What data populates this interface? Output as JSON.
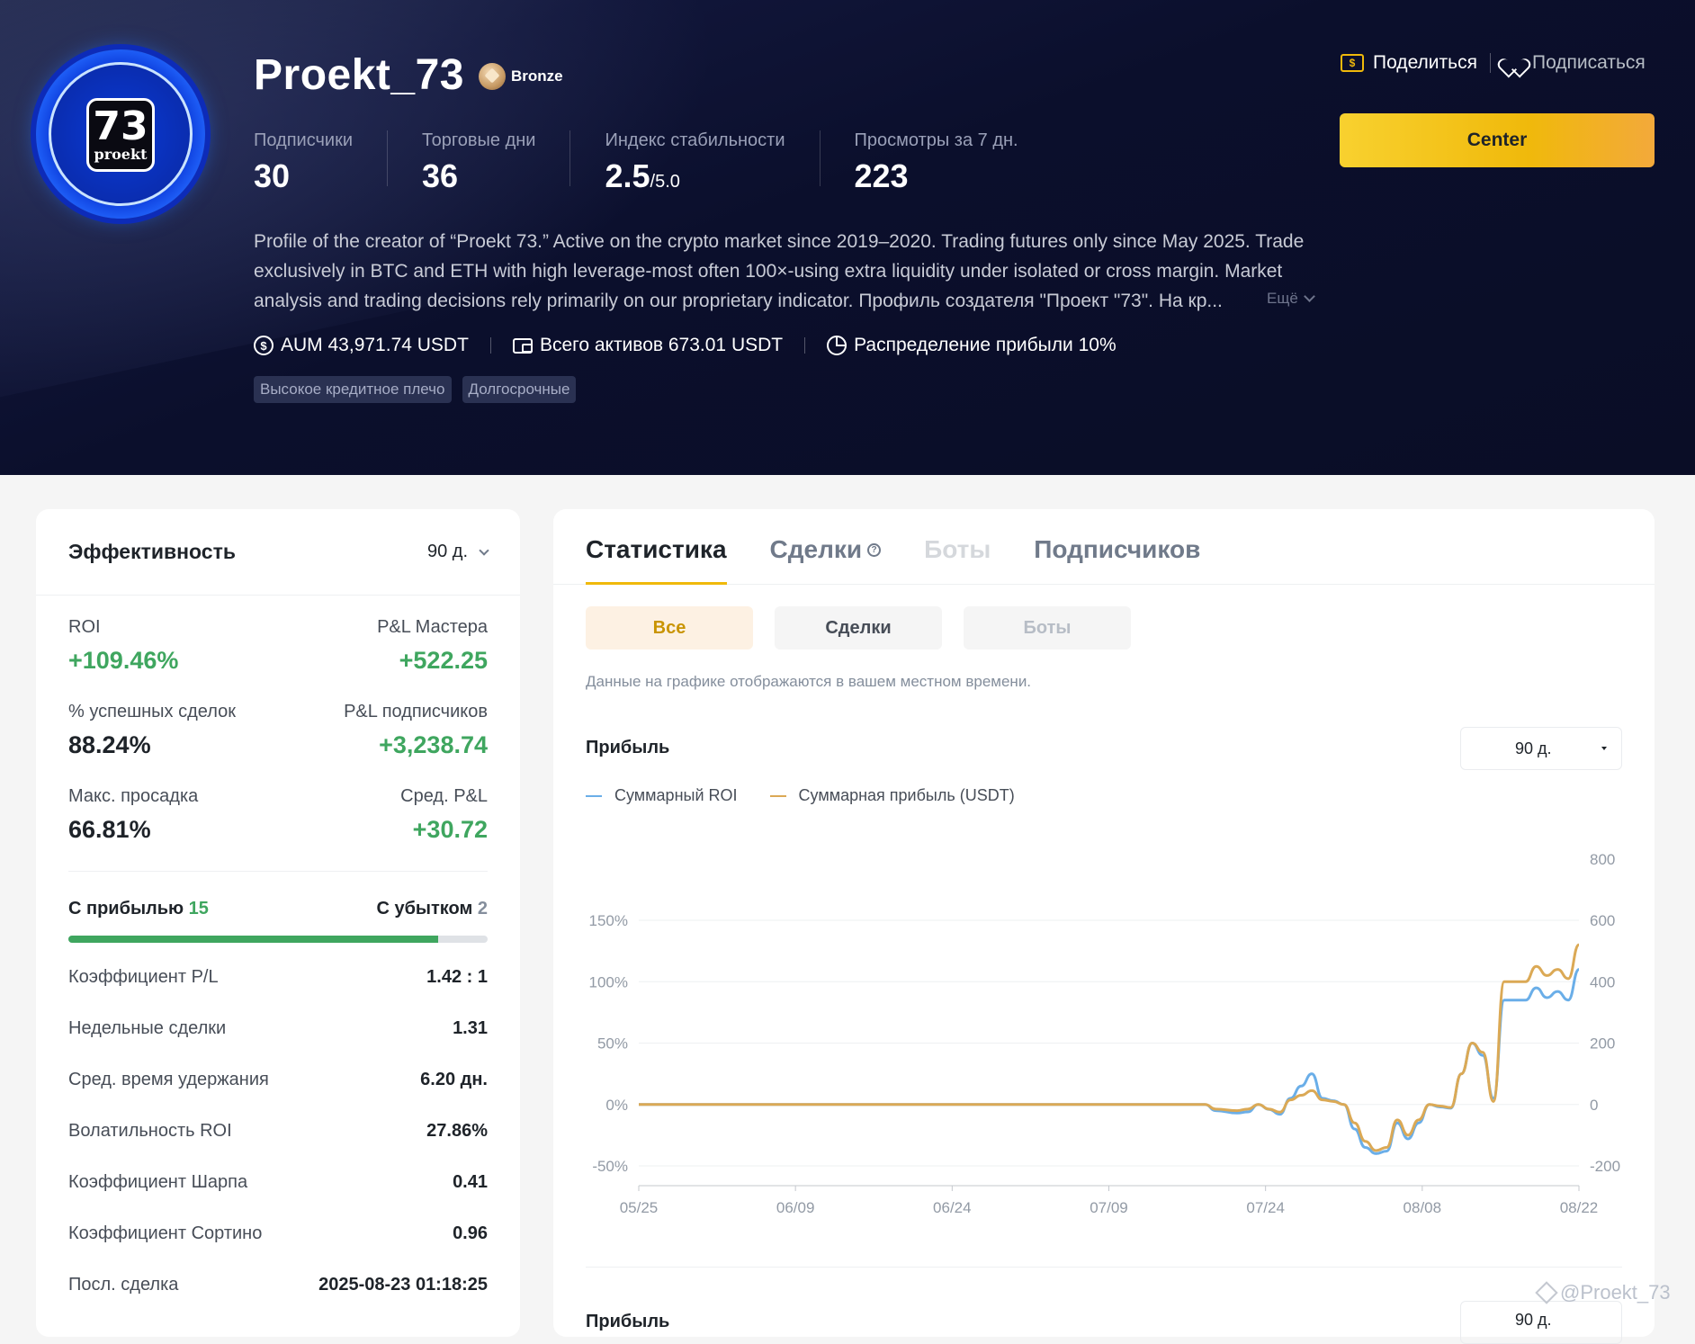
{
  "profile": {
    "name": "Proekt_73",
    "tier": "Bronze",
    "avatar_number": "73",
    "avatar_word": "proekt",
    "stats": [
      {
        "label": "Подписчики",
        "value": "30"
      },
      {
        "label": "Торговые дни",
        "value": "36"
      },
      {
        "label": "Индекс стабильности",
        "value": "2.5",
        "suffix": "/5.0"
      },
      {
        "label": "Просмотры за 7 дн.",
        "value": "223"
      }
    ],
    "bio": "Profile of the creator of “Proekt 73.” Active on the crypto market since 2019–2020. Trading futures only since May 2025. Trade exclusively in BTC and ETH with high leverage-most often 100×-using extra liquidity under isolated or cross margin. Market analysis and trading decisions rely primarily on our proprietary indicator. Профиль создателя \"Проект \"73\". На кр...",
    "more_label": "Ещё",
    "aum": "AUM 43,971.74 USDT",
    "total_assets": "Всего активов 673.01 USDT",
    "profit_share": "Распределение прибыли 10%",
    "tags": [
      "Высокое кредитное плечо",
      "Долгосрочные"
    ],
    "share_label": "Поделиться",
    "subscribe_label": "Подписаться",
    "center_button": "Center"
  },
  "performance": {
    "title": "Эффективность",
    "range": "90 д.",
    "metrics": [
      {
        "left_label": "ROI",
        "left_value": "+109.46%",
        "left_color": "#3fa65f",
        "right_label": "P&L Мастера",
        "right_value": "+522.25",
        "right_color": "#3fa65f"
      },
      {
        "left_label": "% успешных сделок",
        "left_value": "88.24%",
        "left_color": "#1e2329",
        "right_label": "P&L подписчиков",
        "right_value": "+3,238.74",
        "right_color": "#3fa65f"
      },
      {
        "left_label": "Макс. просадка",
        "left_value": "66.81%",
        "left_color": "#1e2329",
        "right_label": "Сред. P&L",
        "right_value": "+30.72",
        "right_color": "#3fa65f"
      }
    ],
    "win_label": "С прибылью",
    "win_count": "15",
    "loss_label": "С убытком",
    "loss_count": "2",
    "win_fraction": 0.882,
    "details": [
      {
        "label": "Коэффициент P/L",
        "value": "1.42 : 1"
      },
      {
        "label": "Недельные сделки",
        "value": "1.31"
      },
      {
        "label": "Сред. время удержания",
        "value": "6.20 дн."
      },
      {
        "label": "Волатильность ROI",
        "value": "27.86%"
      },
      {
        "label": "Коэффициент Шарпа",
        "value": "0.41"
      },
      {
        "label": "Коэффициент Сортино",
        "value": "0.96"
      },
      {
        "label": "Посл. сделка",
        "value": "2025-08-23 01:18:25"
      }
    ]
  },
  "stats_panel": {
    "tabs": [
      {
        "label": "Статистика",
        "state": "active"
      },
      {
        "label": "Сделки",
        "state": "normal",
        "help": true
      },
      {
        "label": "Боты",
        "state": "disabled"
      },
      {
        "label": "Подписчиков",
        "state": "normal"
      }
    ],
    "segments": [
      {
        "label": "Все",
        "state": "active"
      },
      {
        "label": "Сделки",
        "state": "normal"
      },
      {
        "label": "Боты",
        "state": "muted"
      }
    ],
    "note": "Данные на графике отображаются в вашем местном времени.",
    "profit_title": "Прибыль",
    "range": "90 д.",
    "profit_title_2": "Прибыль",
    "range_2": "90 д."
  },
  "chart_data": {
    "type": "line",
    "x": [
      "05/25",
      "06/09",
      "06/24",
      "07/09",
      "07/24",
      "08/08",
      "08/22"
    ],
    "y_left_ticks": [
      "150%",
      "100%",
      "50%",
      "0%",
      "-50%"
    ],
    "y_right_ticks": [
      "800",
      "600",
      "400",
      "200",
      "0",
      "-200"
    ],
    "ylim_left": [
      -50,
      150
    ],
    "ylim_right": [
      -200,
      800
    ],
    "grid": true,
    "legend_position": "top-left",
    "series": [
      {
        "name": "Суммарный ROI",
        "color": "#6aaee8",
        "axis": "left",
        "points": [
          [
            0,
            0
          ],
          [
            53,
            0
          ],
          [
            54,
            -5
          ],
          [
            56,
            -7
          ],
          [
            57,
            -6
          ],
          [
            58,
            0
          ],
          [
            59,
            -4
          ],
          [
            60,
            -8
          ],
          [
            61,
            5
          ],
          [
            62,
            15
          ],
          [
            63,
            25
          ],
          [
            64,
            5
          ],
          [
            65,
            3
          ],
          [
            66,
            0
          ],
          [
            67,
            -20
          ],
          [
            68,
            -35
          ],
          [
            69,
            -40
          ],
          [
            70,
            -38
          ],
          [
            71,
            -15
          ],
          [
            72,
            -28
          ],
          [
            73,
            -15
          ],
          [
            74,
            0
          ],
          [
            75,
            -2
          ],
          [
            76,
            -3
          ],
          [
            77,
            25
          ],
          [
            78,
            50
          ],
          [
            79,
            40
          ],
          [
            80,
            5
          ],
          [
            81,
            85
          ],
          [
            82,
            85
          ],
          [
            83,
            85
          ],
          [
            84,
            95
          ],
          [
            85,
            87
          ],
          [
            86,
            92
          ],
          [
            87,
            85
          ],
          [
            88,
            110
          ]
        ]
      },
      {
        "name": "Суммарная прибыль (USDT)",
        "color": "#dba955",
        "axis": "right",
        "points": [
          [
            0,
            0
          ],
          [
            53,
            0
          ],
          [
            54,
            -15
          ],
          [
            56,
            -20
          ],
          [
            57,
            -15
          ],
          [
            58,
            0
          ],
          [
            59,
            -15
          ],
          [
            60,
            -25
          ],
          [
            61,
            15
          ],
          [
            62,
            30
          ],
          [
            63,
            45
          ],
          [
            64,
            15
          ],
          [
            65,
            10
          ],
          [
            66,
            0
          ],
          [
            67,
            -60
          ],
          [
            68,
            -120
          ],
          [
            69,
            -150
          ],
          [
            70,
            -140
          ],
          [
            71,
            -50
          ],
          [
            72,
            -100
          ],
          [
            73,
            -50
          ],
          [
            74,
            0
          ],
          [
            75,
            -5
          ],
          [
            76,
            -10
          ],
          [
            77,
            100
          ],
          [
            78,
            200
          ],
          [
            79,
            170
          ],
          [
            80,
            10
          ],
          [
            81,
            400
          ],
          [
            82,
            400
          ],
          [
            83,
            400
          ],
          [
            84,
            450
          ],
          [
            85,
            420
          ],
          [
            86,
            440
          ],
          [
            87,
            410
          ],
          [
            88,
            520
          ]
        ]
      }
    ]
  },
  "watermark": "@Proekt_73"
}
